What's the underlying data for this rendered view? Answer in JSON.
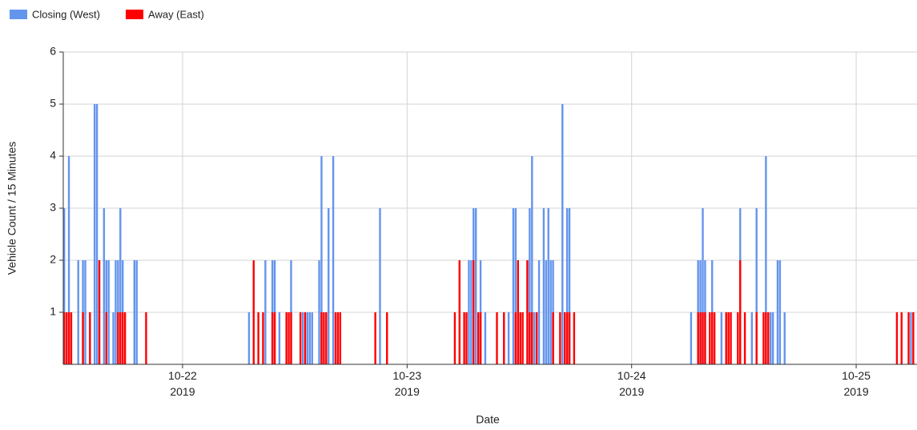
{
  "chart_data": {
    "type": "bar",
    "xlabel": "Date",
    "ylabel": "Vehicle Count / 15 Minutes",
    "xlim": [
      "2019-10-21T11:15",
      "2019-10-25T06:30"
    ],
    "xticks": [
      {
        "value": "2019-10-22T00:00",
        "label": "10-22\n2019"
      },
      {
        "value": "2019-10-23T00:00",
        "label": "10-23\n2019"
      },
      {
        "value": "2019-10-24T00:00",
        "label": "10-24\n2019"
      },
      {
        "value": "2019-10-25T00:00",
        "label": "10-25\n2019"
      }
    ],
    "ylim": [
      0,
      6
    ],
    "yticks": [
      1,
      2,
      3,
      4,
      5,
      6
    ],
    "grid": true,
    "legend": "top-left",
    "series": [
      {
        "name": "Closing (West)",
        "color": "#6495ed",
        "x": [
          "2019-10-21T11:15",
          "2019-10-21T11:45",
          "2019-10-21T12:45",
          "2019-10-21T13:15",
          "2019-10-21T13:30",
          "2019-10-21T14:30",
          "2019-10-21T14:45",
          "2019-10-21T15:00",
          "2019-10-21T15:30",
          "2019-10-21T15:45",
          "2019-10-21T16:00",
          "2019-10-21T16:30",
          "2019-10-21T16:45",
          "2019-10-21T17:00",
          "2019-10-21T17:15",
          "2019-10-21T17:30",
          "2019-10-21T18:45",
          "2019-10-21T19:00",
          "2019-10-22T07:00",
          "2019-10-22T08:45",
          "2019-10-22T09:30",
          "2019-10-22T09:45",
          "2019-10-22T10:15",
          "2019-10-22T11:30",
          "2019-10-22T12:45",
          "2019-10-22T13:15",
          "2019-10-22T13:30",
          "2019-10-22T13:45",
          "2019-10-22T14:30",
          "2019-10-22T14:45",
          "2019-10-22T15:30",
          "2019-10-22T16:00",
          "2019-10-22T21:00",
          "2019-10-23T06:30",
          "2019-10-23T06:45",
          "2019-10-23T07:00",
          "2019-10-23T07:15",
          "2019-10-23T07:45",
          "2019-10-23T08:15",
          "2019-10-23T10:45",
          "2019-10-23T11:15",
          "2019-10-23T11:30",
          "2019-10-23T12:45",
          "2019-10-23T13:00",
          "2019-10-23T13:15",
          "2019-10-23T13:30",
          "2019-10-23T14:00",
          "2019-10-23T14:30",
          "2019-10-23T14:45",
          "2019-10-23T15:00",
          "2019-10-23T15:15",
          "2019-10-23T15:30",
          "2019-10-23T16:30",
          "2019-10-23T17:00",
          "2019-10-23T17:15",
          "2019-10-24T06:15",
          "2019-10-24T07:00",
          "2019-10-24T07:15",
          "2019-10-24T07:30",
          "2019-10-24T07:45",
          "2019-10-24T08:30",
          "2019-10-24T09:30",
          "2019-10-24T11:30",
          "2019-10-24T12:45",
          "2019-10-24T13:15",
          "2019-10-24T14:15",
          "2019-10-24T14:45",
          "2019-10-24T15:00",
          "2019-10-24T15:30",
          "2019-10-24T15:45",
          "2019-10-24T16:15",
          "2019-10-25T05:45"
        ],
        "values": [
          3,
          4,
          2,
          2,
          2,
          5,
          5,
          2,
          3,
          2,
          2,
          1,
          2,
          2,
          3,
          2,
          2,
          2,
          1,
          2,
          2,
          2,
          1,
          2,
          1,
          1,
          1,
          1,
          2,
          4,
          3,
          4,
          3,
          2,
          2,
          3,
          3,
          2,
          1,
          1,
          3,
          3,
          2,
          3,
          4,
          1,
          2,
          3,
          2,
          3,
          2,
          2,
          5,
          3,
          3,
          1,
          2,
          2,
          3,
          2,
          2,
          1,
          3,
          1,
          3,
          4,
          1,
          1,
          2,
          2,
          1,
          1
        ]
      },
      {
        "name": "Away (East)",
        "color": "#ff0000",
        "x": [
          "2019-10-21T11:15",
          "2019-10-21T11:30",
          "2019-10-21T11:45",
          "2019-10-21T12:00",
          "2019-10-21T13:15",
          "2019-10-21T14:00",
          "2019-10-21T15:00",
          "2019-10-21T15:45",
          "2019-10-21T17:00",
          "2019-10-21T17:15",
          "2019-10-21T17:30",
          "2019-10-21T17:45",
          "2019-10-21T20:00",
          "2019-10-22T07:30",
          "2019-10-22T08:00",
          "2019-10-22T08:30",
          "2019-10-22T09:30",
          "2019-10-22T09:45",
          "2019-10-22T11:00",
          "2019-10-22T11:15",
          "2019-10-22T11:30",
          "2019-10-22T12:30",
          "2019-10-22T13:00",
          "2019-10-22T14:45",
          "2019-10-22T15:00",
          "2019-10-22T15:15",
          "2019-10-22T16:15",
          "2019-10-22T16:30",
          "2019-10-22T16:45",
          "2019-10-22T20:30",
          "2019-10-22T21:45",
          "2019-10-23T05:00",
          "2019-10-23T05:30",
          "2019-10-23T06:00",
          "2019-10-23T06:15",
          "2019-10-23T07:00",
          "2019-10-23T07:30",
          "2019-10-23T07:45",
          "2019-10-23T09:30",
          "2019-10-23T10:15",
          "2019-10-23T11:30",
          "2019-10-23T11:45",
          "2019-10-23T12:00",
          "2019-10-23T12:15",
          "2019-10-23T12:45",
          "2019-10-23T13:00",
          "2019-10-23T13:15",
          "2019-10-23T13:45",
          "2019-10-23T15:30",
          "2019-10-23T16:15",
          "2019-10-23T16:45",
          "2019-10-23T17:00",
          "2019-10-23T17:15",
          "2019-10-23T17:45",
          "2019-10-24T07:00",
          "2019-10-24T07:15",
          "2019-10-24T07:30",
          "2019-10-24T07:45",
          "2019-10-24T08:15",
          "2019-10-24T08:30",
          "2019-10-24T08:45",
          "2019-10-24T10:00",
          "2019-10-24T10:15",
          "2019-10-24T10:30",
          "2019-10-24T11:15",
          "2019-10-24T11:30",
          "2019-10-24T12:00",
          "2019-10-24T13:15",
          "2019-10-24T14:00",
          "2019-10-24T14:15",
          "2019-10-24T14:30",
          "2019-10-25T04:15",
          "2019-10-25T04:45",
          "2019-10-25T05:30",
          "2019-10-25T06:00"
        ],
        "values": [
          1,
          1,
          1,
          1,
          1,
          1,
          2,
          1,
          1,
          1,
          1,
          1,
          1,
          2,
          1,
          1,
          1,
          1,
          1,
          1,
          1,
          1,
          1,
          1,
          1,
          1,
          1,
          1,
          1,
          1,
          1,
          1,
          2,
          1,
          1,
          2,
          1,
          1,
          1,
          1,
          1,
          2,
          1,
          1,
          2,
          1,
          1,
          1,
          1,
          1,
          1,
          1,
          1,
          1,
          1,
          1,
          1,
          1,
          1,
          1,
          1,
          1,
          1,
          1,
          1,
          2,
          1,
          1,
          1,
          1,
          1,
          1,
          1,
          1,
          1
        ]
      }
    ]
  }
}
